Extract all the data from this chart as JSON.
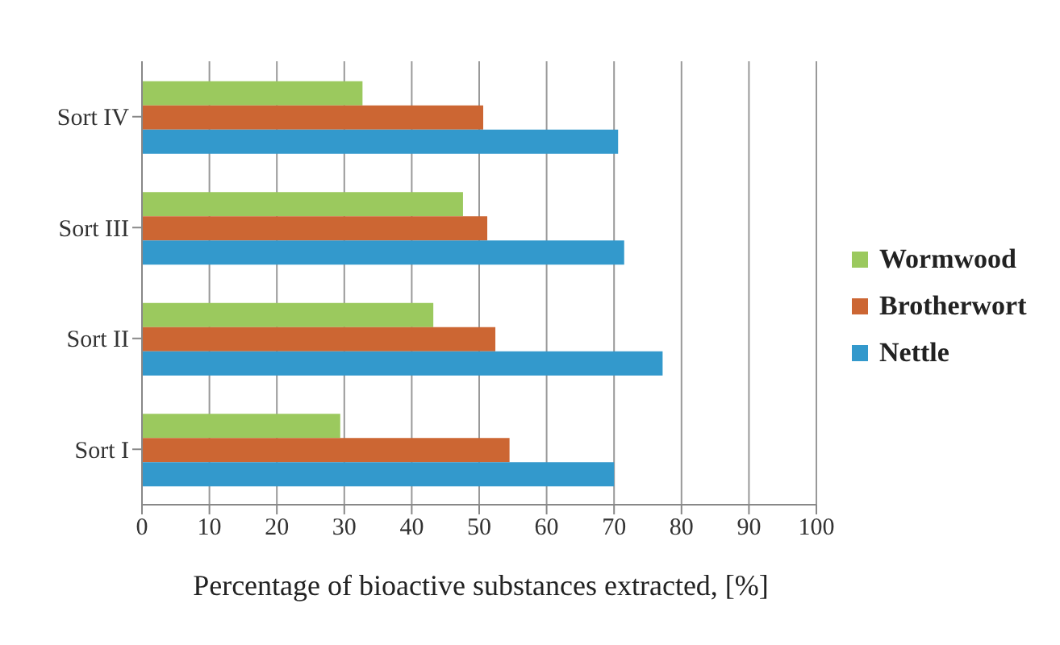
{
  "chart_data": {
    "type": "bar",
    "orientation": "horizontal",
    "xlabel": "Percentage of bioactive substances extracted, [%]",
    "categories": [
      "Sort IV",
      "Sort III",
      "Sort II",
      "Sort I"
    ],
    "series": [
      {
        "name": "Wormwood",
        "color": "#9bc95e",
        "values": [
          32.7,
          47.6,
          43.2,
          29.4
        ]
      },
      {
        "name": "Brotherwort",
        "color": "#cc6633",
        "values": [
          50.6,
          51.2,
          52.4,
          54.5
        ]
      },
      {
        "name": "Nettle",
        "color": "#3399cc",
        "values": [
          70.6,
          71.5,
          77.2,
          70.0
        ]
      }
    ],
    "xlim": [
      0,
      100
    ],
    "xticks": [
      0,
      10,
      20,
      30,
      40,
      50,
      60,
      70,
      80,
      90,
      100
    ],
    "grid": "x",
    "legend": "right"
  }
}
